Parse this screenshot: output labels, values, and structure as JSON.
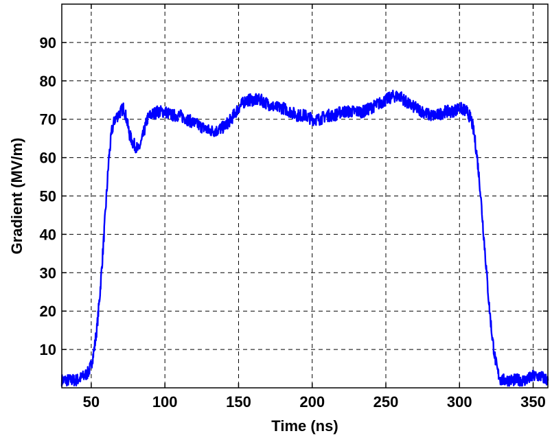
{
  "chart_data": {
    "type": "line",
    "title": "",
    "xlabel": "Time (ns)",
    "ylabel": "Gradient (MV/m)",
    "xlim": [
      30,
      360
    ],
    "ylim": [
      0,
      100
    ],
    "x_ticks": [
      50,
      100,
      150,
      200,
      250,
      300,
      350
    ],
    "y_ticks": [
      10,
      20,
      30,
      40,
      50,
      60,
      70,
      80,
      90
    ],
    "x_tick_labels": [
      "50",
      "100",
      "150",
      "200",
      "250",
      "300",
      "350"
    ],
    "y_tick_labels": [
      "10",
      "20",
      "30",
      "40",
      "50",
      "60",
      "70",
      "80",
      "90"
    ],
    "grid": true,
    "legend": "none",
    "colors": {
      "series": "#0000ff",
      "axes": "#000000",
      "background": "#ffffff"
    },
    "series": [
      {
        "x": [
          30,
          35,
          40,
          45,
          48,
          50,
          52,
          54,
          56,
          58,
          60,
          62,
          64,
          66,
          68,
          70,
          72,
          74,
          76,
          78,
          80,
          82,
          84,
          86,
          88,
          90,
          95,
          100,
          105,
          110,
          115,
          120,
          125,
          130,
          135,
          140,
          145,
          150,
          155,
          160,
          165,
          170,
          175,
          180,
          185,
          190,
          195,
          200,
          205,
          210,
          215,
          220,
          225,
          230,
          235,
          240,
          245,
          250,
          255,
          260,
          265,
          270,
          275,
          280,
          285,
          290,
          295,
          300,
          305,
          308,
          310,
          312,
          314,
          316,
          318,
          320,
          322,
          324,
          326,
          328,
          330,
          335,
          340,
          345,
          350,
          355,
          360
        ],
        "y": [
          2,
          2,
          2,
          3,
          4,
          6,
          10,
          16,
          25,
          36,
          48,
          60,
          67,
          70,
          71,
          72,
          73,
          70,
          66,
          64,
          63,
          62,
          64,
          67,
          70,
          71,
          72,
          72,
          71,
          71,
          70,
          69,
          68,
          67,
          67,
          68,
          70,
          73,
          75,
          75,
          75,
          74,
          73,
          73,
          72,
          71,
          71,
          70,
          70,
          71,
          71,
          72,
          72,
          72,
          72,
          73,
          74,
          75,
          76,
          76,
          74,
          73,
          72,
          71,
          71,
          72,
          72,
          73,
          72,
          70,
          66,
          60,
          52,
          42,
          32,
          22,
          14,
          8,
          4,
          2,
          2,
          2,
          2,
          2,
          3,
          3,
          2
        ]
      }
    ]
  }
}
